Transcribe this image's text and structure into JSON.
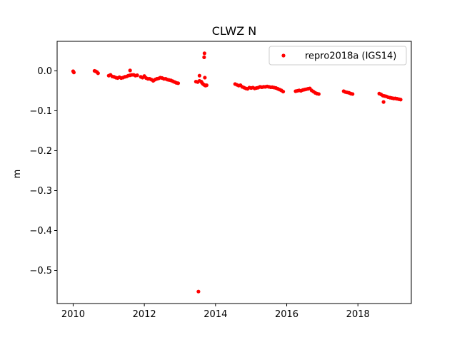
{
  "chart_data": {
    "type": "scatter",
    "title": "CLWZ N",
    "xlabel": "",
    "ylabel": "m",
    "xlim": [
      2009.55,
      2019.5
    ],
    "ylim": [
      -0.583,
      0.074
    ],
    "xticks": [
      2010,
      2012,
      2014,
      2016,
      2018
    ],
    "xtick_labels": [
      "2010",
      "2012",
      "2014",
      "2016",
      "2018"
    ],
    "yticks": [
      0.0,
      -0.1,
      -0.2,
      -0.3,
      -0.4,
      -0.5
    ],
    "ytick_labels": [
      "0.0",
      "−0.1",
      "−0.2",
      "−0.3",
      "−0.4",
      "−0.5"
    ],
    "grid": false,
    "legend_position": "top-right",
    "color": "#ff0000",
    "series": [
      {
        "name": "repro2018a (IGS14)",
        "x": [
          2010.0,
          2010.02,
          2010.6,
          2010.63,
          2010.67,
          2010.7,
          2011.0,
          2011.05,
          2011.1,
          2011.15,
          2011.2,
          2011.25,
          2011.3,
          2011.35,
          2011.4,
          2011.45,
          2011.5,
          2011.55,
          2011.6,
          2011.65,
          2011.7,
          2011.75,
          2011.8,
          2011.6,
          2011.9,
          2011.95,
          2012.0,
          2012.05,
          2012.1,
          2012.15,
          2012.2,
          2012.25,
          2012.3,
          2012.35,
          2012.4,
          2012.45,
          2012.5,
          2012.55,
          2012.6,
          2012.65,
          2012.7,
          2012.75,
          2012.8,
          2012.85,
          2012.9,
          2012.95,
          2013.45,
          2013.5,
          2013.55,
          2013.6,
          2013.62,
          2013.65,
          2013.68,
          2013.7,
          2013.72,
          2013.75,
          2013.55,
          2013.7,
          2013.68,
          2013.69,
          2013.52,
          2014.55,
          2014.6,
          2014.65,
          2014.7,
          2014.75,
          2014.8,
          2014.85,
          2014.9,
          2014.95,
          2015.0,
          2015.05,
          2015.1,
          2015.15,
          2015.2,
          2015.25,
          2015.3,
          2015.35,
          2015.4,
          2015.45,
          2015.5,
          2015.55,
          2015.6,
          2015.65,
          2015.7,
          2015.75,
          2015.8,
          2015.85,
          2015.9,
          2016.25,
          2016.3,
          2016.35,
          2016.4,
          2016.45,
          2016.5,
          2016.55,
          2016.6,
          2016.65,
          2016.7,
          2016.75,
          2016.8,
          2016.85,
          2016.9,
          2017.6,
          2017.65,
          2017.7,
          2017.75,
          2017.8,
          2017.85,
          2018.6,
          2018.65,
          2018.7,
          2018.72,
          2018.75,
          2018.8,
          2018.85,
          2018.9,
          2018.95,
          2019.0,
          2019.05,
          2019.1,
          2019.15,
          2019.2
        ],
        "y": [
          -0.001,
          -0.004,
          0.0,
          -0.001,
          -0.003,
          -0.006,
          -0.012,
          -0.01,
          -0.014,
          -0.015,
          -0.017,
          -0.018,
          -0.016,
          -0.018,
          -0.017,
          -0.015,
          -0.014,
          -0.012,
          -0.011,
          -0.01,
          -0.01,
          -0.012,
          -0.011,
          0.001,
          -0.015,
          -0.017,
          -0.013,
          -0.018,
          -0.02,
          -0.02,
          -0.022,
          -0.025,
          -0.022,
          -0.02,
          -0.019,
          -0.017,
          -0.018,
          -0.02,
          -0.02,
          -0.022,
          -0.023,
          -0.024,
          -0.026,
          -0.028,
          -0.03,
          -0.031,
          -0.027,
          -0.028,
          -0.025,
          -0.027,
          -0.03,
          -0.033,
          -0.035,
          -0.036,
          -0.037,
          -0.036,
          -0.012,
          -0.017,
          0.034,
          0.044,
          -0.553,
          -0.033,
          -0.035,
          -0.037,
          -0.036,
          -0.04,
          -0.042,
          -0.044,
          -0.045,
          -0.042,
          -0.043,
          -0.042,
          -0.044,
          -0.043,
          -0.042,
          -0.04,
          -0.041,
          -0.04,
          -0.04,
          -0.039,
          -0.04,
          -0.041,
          -0.041,
          -0.042,
          -0.043,
          -0.045,
          -0.047,
          -0.049,
          -0.052,
          -0.051,
          -0.05,
          -0.049,
          -0.05,
          -0.048,
          -0.047,
          -0.046,
          -0.045,
          -0.044,
          -0.049,
          -0.052,
          -0.055,
          -0.057,
          -0.058,
          -0.051,
          -0.053,
          -0.054,
          -0.055,
          -0.057,
          -0.058,
          -0.057,
          -0.059,
          -0.062,
          -0.078,
          -0.063,
          -0.064,
          -0.066,
          -0.067,
          -0.068,
          -0.069,
          -0.069,
          -0.07,
          -0.071,
          -0.072
        ]
      }
    ]
  }
}
